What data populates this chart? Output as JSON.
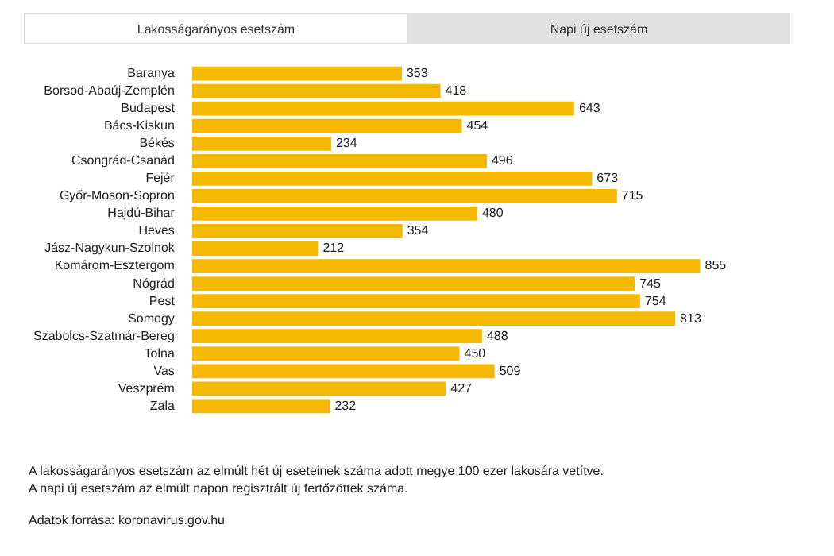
{
  "chart_data": {
    "type": "bar",
    "orientation": "horizontal",
    "data_labels": true,
    "legend": false,
    "categories": [
      "Baranya",
      "Borsod-Abaúj-Zemplén",
      "Budapest",
      "Bács-Kiskun",
      "Békés",
      "Csongrád-Csanád",
      "Fejér",
      "Győr-Moson-Sopron",
      "Hajdú-Bihar",
      "Heves",
      "Jász-Nagykun-Szolnok",
      "Komárom-Esztergom",
      "Nógrád",
      "Pest",
      "Somogy",
      "Szabolcs-Szatmár-Bereg",
      "Tolna",
      "Vas",
      "Veszprém",
      "Zala"
    ],
    "values": [
      353,
      418,
      643,
      454,
      234,
      496,
      673,
      715,
      480,
      354,
      212,
      855,
      745,
      754,
      813,
      488,
      450,
      509,
      427,
      232
    ],
    "color": "#f5b800",
    "annotations": [
      "Lakosságarányos esetszám",
      "Napi új esetszám",
      "A lakosságarányos esetszám az elmúlt hét új eseteinek száma adott megye 100 ezer lakosára vetítve.",
      "A napi új esetszám az elmúlt napon regisztrált új fertőzöttek száma.",
      "Adatok forrása: koronavirus.gov.hu"
    ]
  }
}
